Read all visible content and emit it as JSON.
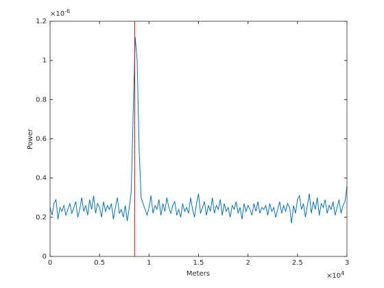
{
  "chart_data": {
    "type": "line",
    "xlabel": "Meters",
    "ylabel": "Power",
    "x_multiplier": {
      "base": "×10",
      "exponent": "4"
    },
    "y_multiplier": {
      "base": "×10",
      "exponent": "-6"
    },
    "xlim": [
      0,
      3
    ],
    "xticks": [
      0,
      0.5,
      1,
      1.5,
      2,
      2.5,
      3
    ],
    "ylim": [
      0,
      1.2
    ],
    "yticks": [
      0,
      0.2,
      0.4,
      0.6,
      0.8,
      1,
      1.2
    ],
    "grid": false,
    "vline": {
      "x": 0.855,
      "color": "#d01010"
    },
    "x": [
      0,
      0.02,
      0.04,
      0.06,
      0.08,
      0.1,
      0.12,
      0.14,
      0.16,
      0.18,
      0.2,
      0.22,
      0.24,
      0.26,
      0.28,
      0.3,
      0.32,
      0.34,
      0.36,
      0.38,
      0.4,
      0.42,
      0.44,
      0.46,
      0.48,
      0.5,
      0.52,
      0.54,
      0.56,
      0.58,
      0.6,
      0.62,
      0.64,
      0.66,
      0.68,
      0.7,
      0.72,
      0.74,
      0.76,
      0.78,
      0.8,
      0.82,
      0.84,
      0.86,
      0.88,
      0.9,
      0.92,
      0.94,
      0.96,
      0.98,
      1,
      1.02,
      1.04,
      1.06,
      1.08,
      1.1,
      1.12,
      1.14,
      1.16,
      1.18,
      1.2,
      1.22,
      1.24,
      1.26,
      1.28,
      1.3,
      1.32,
      1.34,
      1.36,
      1.38,
      1.4,
      1.42,
      1.44,
      1.46,
      1.48,
      1.5,
      1.52,
      1.54,
      1.56,
      1.58,
      1.6,
      1.62,
      1.64,
      1.66,
      1.68,
      1.7,
      1.72,
      1.74,
      1.76,
      1.78,
      1.8,
      1.82,
      1.84,
      1.86,
      1.88,
      1.9,
      1.92,
      1.94,
      1.96,
      1.98,
      2,
      2.02,
      2.04,
      2.06,
      2.08,
      2.1,
      2.12,
      2.14,
      2.16,
      2.18,
      2.2,
      2.22,
      2.24,
      2.26,
      2.28,
      2.3,
      2.32,
      2.34,
      2.36,
      2.38,
      2.4,
      2.42,
      2.44,
      2.46,
      2.48,
      2.5,
      2.52,
      2.54,
      2.56,
      2.58,
      2.6,
      2.62,
      2.64,
      2.66,
      2.68,
      2.7,
      2.72,
      2.74,
      2.76,
      2.78,
      2.8,
      2.82,
      2.84,
      2.86,
      2.88,
      2.9,
      2.92,
      2.94,
      2.96,
      2.98,
      3
    ],
    "series": [
      {
        "color": "#0072bd",
        "values": [
          0.25,
          0.21,
          0.27,
          0.29,
          0.19,
          0.25,
          0.23,
          0.26,
          0.21,
          0.24,
          0.27,
          0.22,
          0.25,
          0.28,
          0.2,
          0.24,
          0.3,
          0.23,
          0.26,
          0.21,
          0.29,
          0.24,
          0.31,
          0.22,
          0.27,
          0.25,
          0.2,
          0.28,
          0.23,
          0.26,
          0.24,
          0.27,
          0.19,
          0.25,
          0.3,
          0.22,
          0.24,
          0.2,
          0.26,
          0.18,
          0.25,
          0.33,
          0.73,
          1.12,
          1.0,
          0.55,
          0.3,
          0.27,
          0.24,
          0.21,
          0.25,
          0.31,
          0.22,
          0.26,
          0.24,
          0.29,
          0.21,
          0.27,
          0.23,
          0.3,
          0.25,
          0.22,
          0.26,
          0.28,
          0.21,
          0.24,
          0.2,
          0.27,
          0.23,
          0.25,
          0.22,
          0.3,
          0.24,
          0.2,
          0.27,
          0.32,
          0.22,
          0.25,
          0.28,
          0.21,
          0.26,
          0.23,
          0.3,
          0.22,
          0.26,
          0.24,
          0.29,
          0.21,
          0.27,
          0.23,
          0.25,
          0.2,
          0.26,
          0.24,
          0.28,
          0.22,
          0.25,
          0.19,
          0.27,
          0.23,
          0.26,
          0.24,
          0.21,
          0.27,
          0.23,
          0.28,
          0.22,
          0.25,
          0.24,
          0.26,
          0.21,
          0.27,
          0.23,
          0.25,
          0.2,
          0.24,
          0.28,
          0.22,
          0.26,
          0.23,
          0.27,
          0.25,
          0.17,
          0.26,
          0.22,
          0.29,
          0.31,
          0.24,
          0.27,
          0.2,
          0.26,
          0.32,
          0.22,
          0.28,
          0.24,
          0.3,
          0.21,
          0.27,
          0.25,
          0.29,
          0.22,
          0.26,
          0.24,
          0.28,
          0.21,
          0.25,
          0.29,
          0.22,
          0.26,
          0.28,
          0.36
        ]
      }
    ]
  }
}
